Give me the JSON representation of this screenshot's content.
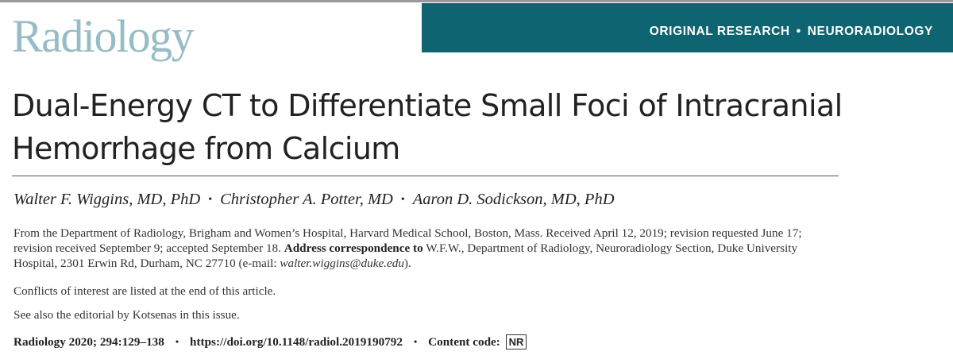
{
  "header": {
    "logo_text": "Radiology",
    "section": "ORIGINAL RESEARCH",
    "separator": "•",
    "subsection": "NEURORADIOLOGY",
    "banner_color": "#0e6470",
    "logo_color": "#96bcc6"
  },
  "article": {
    "title_line1": "Dual-Energy CT to Differentiate Small Foci of Intracranial",
    "title_line2": "Hemorrhage from Calcium",
    "authors": [
      "Walter F. Wiggins, MD, PhD",
      "Christopher A. Potter, MD",
      "Aaron D. Sodickson, MD, PhD"
    ],
    "author_separator": "•",
    "affiliation_part1": "From the Department of Radiology, Brigham and Women’s Hospital, Harvard Medical School, Boston, Mass. Received April 12, 2019; revision requested June 17; revision received September 9; accepted September 18. ",
    "correspondence_label": "Address correspondence to",
    "affiliation_part2": " W.F.W., Department of Radiology, Neuroradiology Section, Duke University Hospital, 2301 Erwin Rd, Durham, NC 27710 (e-mail: ",
    "email": "walter.wiggins@duke.edu",
    "affiliation_part3": ").",
    "conflicts_note": "Conflicts of interest are listed at the end of this article.",
    "editorial_note": "See also the editorial by Kotsenas in this issue.",
    "citation": {
      "journal_ref": "Radiology 2020; 294:129–138",
      "separator": "•",
      "doi": "https://doi.org/10.1148/radiol.2019190792",
      "content_code_label": "Content code:",
      "content_code": "NR"
    }
  }
}
